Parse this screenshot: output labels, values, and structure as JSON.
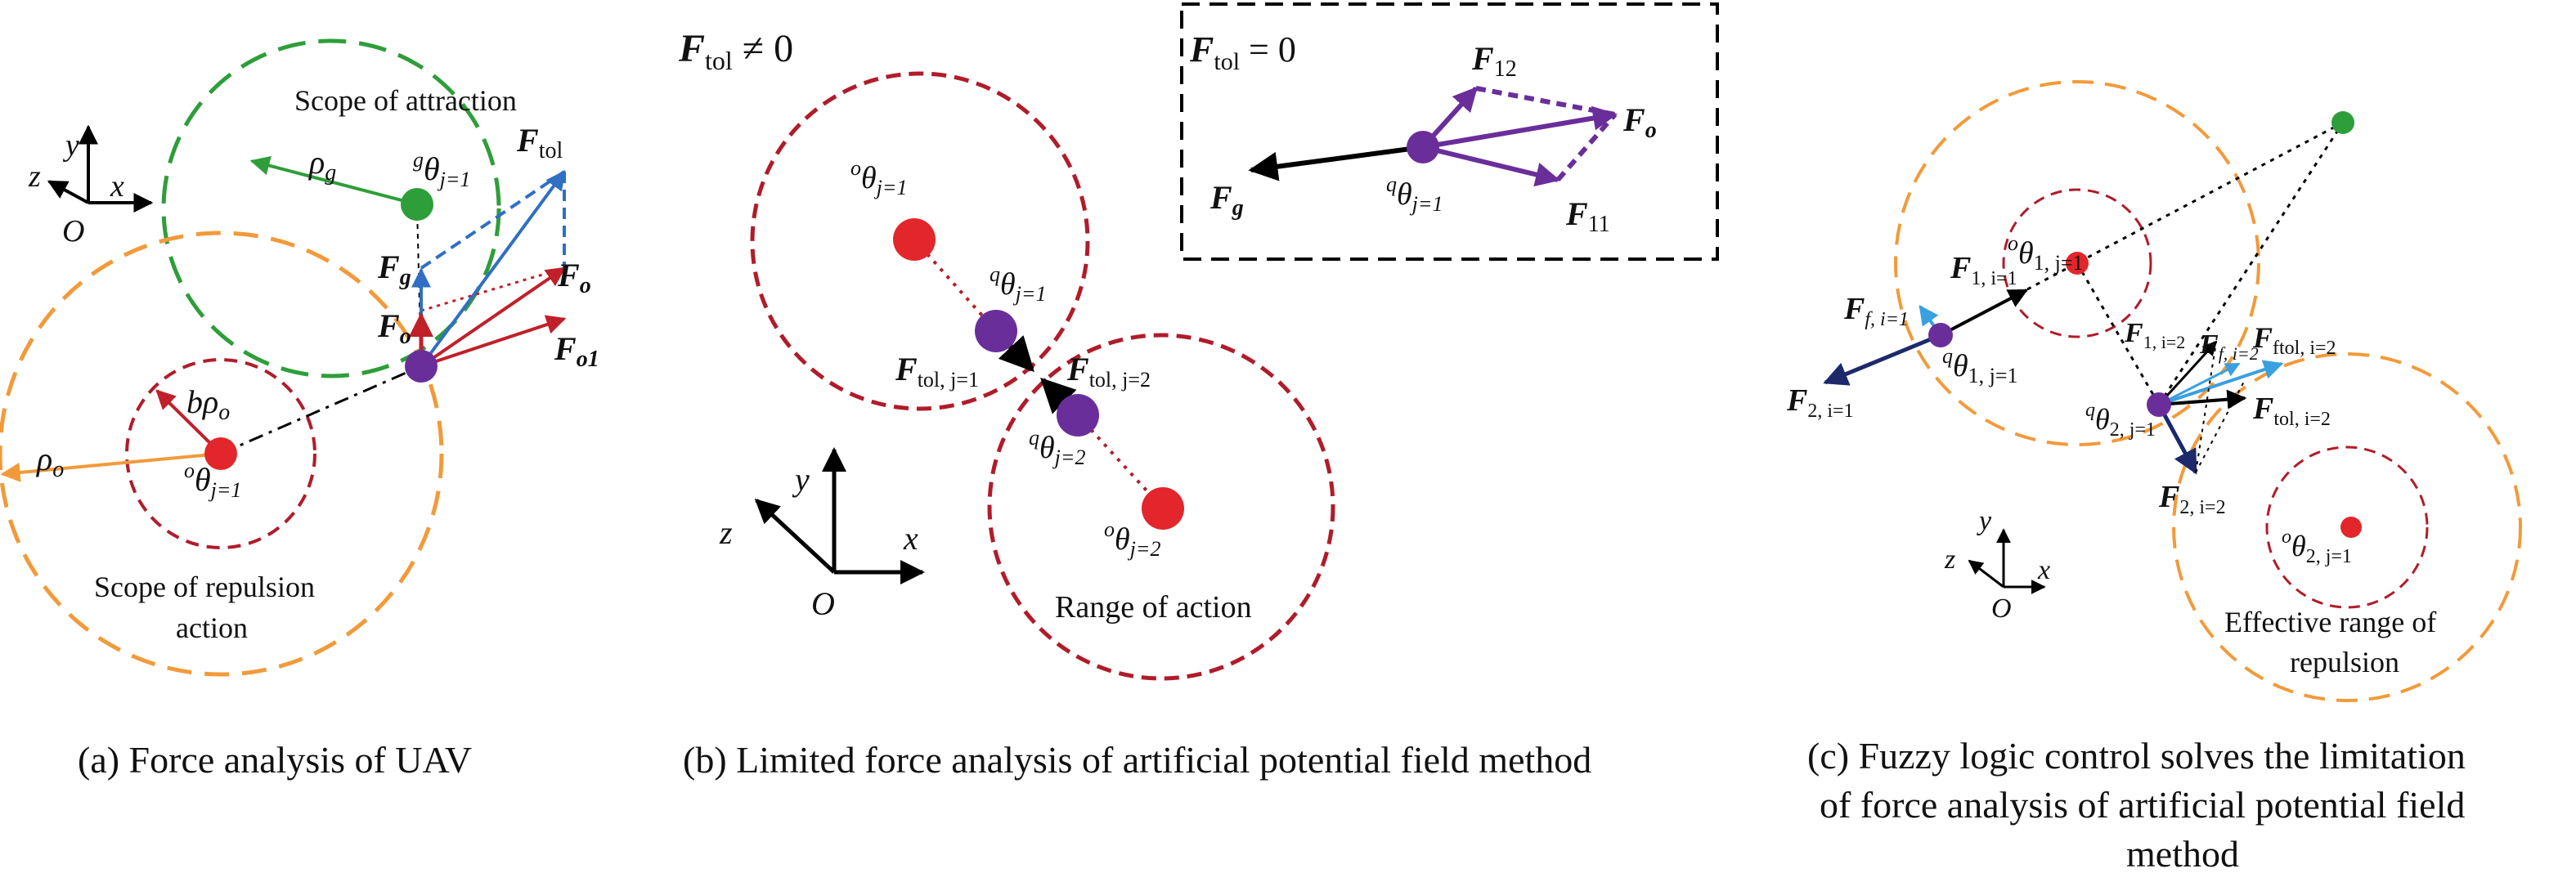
{
  "colors": {
    "green": "#2e9e3a",
    "orange": "#f29a3a",
    "crimson": "#b01c2a",
    "red": "#e3262b",
    "purple": "#6a2e9b",
    "blue": "#2f6fc4",
    "light_blue": "#3aa0e0",
    "navy": "#1c2a6b",
    "black": "#000000"
  },
  "panel_a": {
    "caption": "(a) Force analysis of UAV",
    "scope_attraction": "Scope of attraction",
    "scope_repulsion_line1": "Scope of repulsion",
    "scope_repulsion_line2": "action",
    "rho_g": "ρ",
    "rho_g_sub": "g",
    "rho_o": "ρ",
    "rho_o_sub": "o",
    "b_rho_o": "bρ",
    "b_rho_o_sub": "o",
    "goal_sup": "g",
    "goal_theta": "θ",
    "goal_sub": "j=1",
    "obs_sup": "o",
    "obs_theta": "θ",
    "obs_sub": "j=1",
    "F_tol": "F",
    "F_tol_sub": "tol",
    "F_o_right": "F",
    "F_o_right_sub": "o",
    "F_o1": "F",
    "F_o1_sub": "o1",
    "F_g": "F",
    "F_g_sub": "g",
    "F_o_left": "F",
    "F_o_left_sub": "o",
    "axis_y": "y",
    "axis_z": "z",
    "axis_x": "x",
    "axis_O": "O"
  },
  "panel_b": {
    "caption": "(b) Limited force analysis of artificial potential field method",
    "ftol_ne": "F",
    "ftol_ne_sub": "tol",
    "ftol_ne_rel": " ≠ 0",
    "inset_ftol": "F",
    "inset_ftol_sub": "tol",
    "inset_eq": " = 0",
    "F12": "F",
    "F12_sub": "12",
    "F11": "F",
    "F11_sub": "11",
    "Fo": "F",
    "Fo_sub": "o",
    "Fg": "F",
    "Fg_sub": "g",
    "inset_q_sup": "q",
    "inset_q_theta": "θ",
    "inset_q_sub": "j=1",
    "obs1_sup": "o",
    "obs1_theta": "θ",
    "obs1_sub": "j=1",
    "q1_sup": "q",
    "q1_theta": "θ",
    "q1_sub": "j=1",
    "ftol1": "F",
    "ftol1_sub": "tol, j=1",
    "ftol2": "F",
    "ftol2_sub": "tol, j=2",
    "q2_sup": "q",
    "q2_theta": "θ",
    "q2_sub": "j=2",
    "obs2_sup": "o",
    "obs2_theta": "θ",
    "obs2_sub": "j=2",
    "range_of_action": "Range of action",
    "axis_y": "y",
    "axis_z": "z",
    "axis_x": "x",
    "axis_O": "O"
  },
  "panel_c": {
    "caption_line1": "(c) Fuzzy logic control solves the limitation",
    "caption_line2": "of force analysis of artificial potential field",
    "caption_line3": "method",
    "obs1_sup": "o",
    "obs1_theta": "θ",
    "obs1_sub": "1, j=1",
    "F1_i1": "F",
    "F1_i1_sub": "1, i=1",
    "Ff_i1": "F",
    "Ff_i1_sub": "f, i=1",
    "q1_sup": "q",
    "q1_theta": "θ",
    "q1_sub": "1, j=1",
    "F2_i1": "F",
    "F2_i1_sub": "2, i=1",
    "F1_i2": "F",
    "F1_i2_sub": "1, i=2",
    "Ff_i2": "F",
    "Ff_i2_sub": "f, i=2",
    "Fftol_i2": "F",
    "Fftol_i2_sub": "ftol, i=2",
    "q2_sup": "q",
    "q2_theta": "θ",
    "q2_sub": "2, j=1",
    "Ftol_i2": "F",
    "Ftol_i2_sub": "tol, i=2",
    "F2_i2": "F",
    "F2_i2_sub": "2, i=2",
    "obs2_sup": "o",
    "obs2_theta": "θ",
    "obs2_sub": "2, j=1",
    "effective_line1": "Effective range of",
    "effective_line2": "repulsion",
    "axis_y": "y",
    "axis_z": "z",
    "axis_x": "x",
    "axis_O": "O"
  }
}
